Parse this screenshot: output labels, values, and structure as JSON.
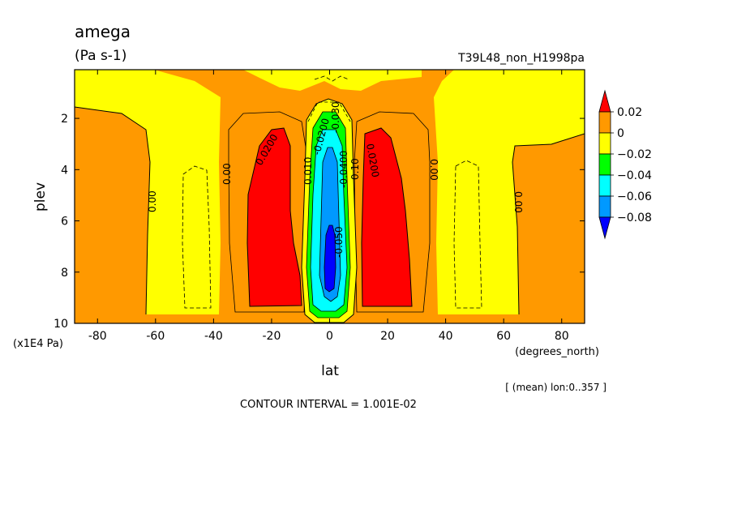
{
  "chart_data": {
    "type": "contour",
    "title": "amega",
    "units": "(Pa s-1)",
    "experiment": "T39L48_non_H1998pa",
    "xlabel": "lat",
    "x_units": "(degrees_north)",
    "ylabel": "plev",
    "y_units": "(x1E4 Pa)",
    "x_ticks": [
      -80,
      -60,
      -40,
      -20,
      0,
      20,
      40,
      60,
      80
    ],
    "y_ticks": [
      2,
      4,
      6,
      8,
      10
    ],
    "xlim": [
      -87.9,
      87.9
    ],
    "ylim": [
      10,
      0.1
    ],
    "y_inverted": true,
    "contour_interval_text": "CONTOUR INTERVAL = 1.001E-02",
    "averaging_text": "[ (mean) lon:0..357 ]",
    "colorbar": {
      "labels": [
        "0.02",
        "0",
        "−0.02",
        "−0.04",
        "−0.06",
        "−0.08"
      ],
      "colors": [
        "#ff0000",
        "#ff9900",
        "#ffff00",
        "#00ff00",
        "#00ffff",
        "#0099ff",
        "#0000ff"
      ]
    },
    "contour_labels": [
      "0.00",
      "0.00",
      "0.0200",
      "0.010",
      "-0.0200",
      "-0.050",
      "-0.0400",
      "-0.030",
      "0.10",
      "0.0200",
      "0.00",
      "0.00"
    ],
    "regions": [
      {
        "name": "southern-positive-cell",
        "level": "> 0.02",
        "color": "#ff0000",
        "lat_range": [
          -30,
          -8
        ],
        "plev_range": [
          2.4,
          9.3
        ]
      },
      {
        "name": "northern-positive-cell",
        "level": "> 0.02",
        "color": "#ff0000",
        "lat_range": [
          11,
          32
        ],
        "plev_range": [
          2.4,
          9.3
        ]
      },
      {
        "name": "equatorial-ascent",
        "level": "< -0.08",
        "color": "#0000ff",
        "lat_range": [
          -4,
          4
        ],
        "plev_range": [
          6.5,
          8.8
        ]
      },
      {
        "name": "subtropical-descent-bands",
        "level": "0 .. 0.02",
        "color": "#ff9900"
      },
      {
        "name": "weak-ascent-zones",
        "level": "-0.02 .. 0",
        "color": "#ffff00"
      }
    ]
  }
}
